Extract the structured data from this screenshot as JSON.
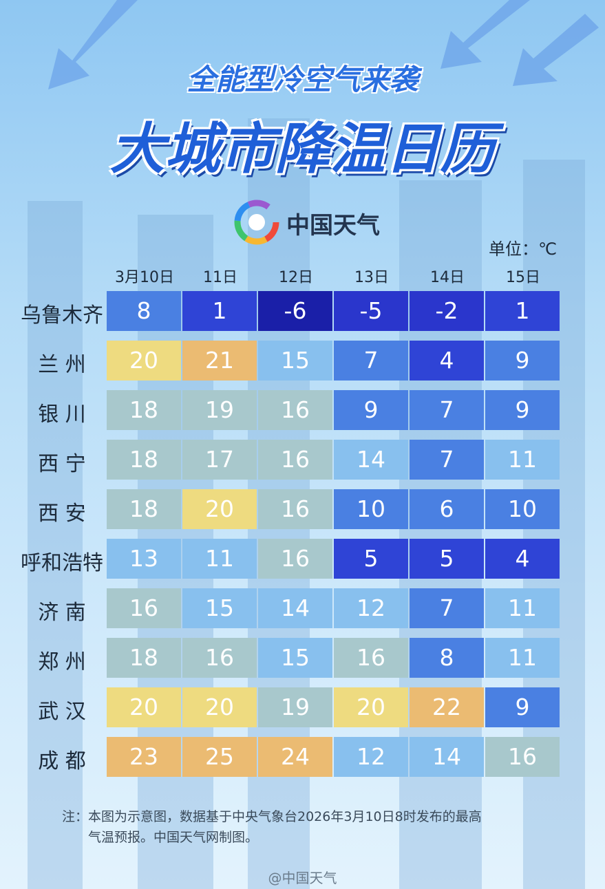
{
  "header": {
    "subtitle": "全能型冷空气来袭",
    "title": "大城市降温日历",
    "logo": "中国天气",
    "unit": "单位：℃"
  },
  "table": {
    "columns": [
      "3月10日",
      "11日",
      "12日",
      "13日",
      "14日",
      "15日"
    ],
    "rows": [
      {
        "city": "乌鲁木齐",
        "values": [
          8,
          1,
          -6,
          -5,
          -2,
          1
        ],
        "colors": [
          "#4a80e2",
          "#2f44d6",
          "#1a1fa8",
          "#2a36cc",
          "#2a36cc",
          "#2f44d6"
        ]
      },
      {
        "city": "兰 州",
        "values": [
          20,
          21,
          15,
          7,
          4,
          9
        ],
        "colors": [
          "#eedb80",
          "#ebbb72",
          "#88c0ee",
          "#4a80e2",
          "#2f44d6",
          "#4a80e2"
        ]
      },
      {
        "city": "银 川",
        "values": [
          18,
          19,
          16,
          9,
          7,
          9
        ],
        "colors": [
          "#a8c8cc",
          "#a8c8cc",
          "#a8c8cc",
          "#4a80e2",
          "#4a80e2",
          "#4a80e2"
        ]
      },
      {
        "city": "西 宁",
        "values": [
          18,
          17,
          16,
          14,
          7,
          11
        ],
        "colors": [
          "#a8c8cc",
          "#a8c8cc",
          "#a8c8cc",
          "#88c0ee",
          "#4a80e2",
          "#88c0ee"
        ]
      },
      {
        "city": "西 安",
        "values": [
          18,
          20,
          16,
          10,
          6,
          10
        ],
        "colors": [
          "#a8c8cc",
          "#eedb80",
          "#a8c8cc",
          "#4a80e2",
          "#4a80e2",
          "#4a80e2"
        ]
      },
      {
        "city": "呼和浩特",
        "values": [
          13,
          11,
          16,
          5,
          5,
          4
        ],
        "colors": [
          "#88c0ee",
          "#88c0ee",
          "#a8c8cc",
          "#2f44d6",
          "#2f44d6",
          "#2f44d6"
        ]
      },
      {
        "city": "济 南",
        "values": [
          16,
          15,
          14,
          12,
          7,
          11
        ],
        "colors": [
          "#a8c8cc",
          "#88c0ee",
          "#88c0ee",
          "#88c0ee",
          "#4a80e2",
          "#88c0ee"
        ]
      },
      {
        "city": "郑 州",
        "values": [
          18,
          16,
          15,
          16,
          8,
          11
        ],
        "colors": [
          "#a8c8cc",
          "#a8c8cc",
          "#88c0ee",
          "#a8c8cc",
          "#4a80e2",
          "#88c0ee"
        ]
      },
      {
        "city": "武 汉",
        "values": [
          20,
          20,
          19,
          20,
          22,
          9
        ],
        "colors": [
          "#eedb80",
          "#eedb80",
          "#a8c8cc",
          "#eedb80",
          "#ebbb72",
          "#4a80e2"
        ]
      },
      {
        "city": "成 都",
        "values": [
          23,
          25,
          24,
          12,
          14,
          16
        ],
        "colors": [
          "#ebbb72",
          "#ebbb72",
          "#ebbb72",
          "#88c0ee",
          "#88c0ee",
          "#a8c8cc"
        ]
      }
    ]
  },
  "footnote": [
    "注：本图为示意图，数据基于中央气象台2026年3月10日8时发布的最高",
    "气温预报。中国天气网制图。"
  ],
  "watermark": "@中国天气"
}
